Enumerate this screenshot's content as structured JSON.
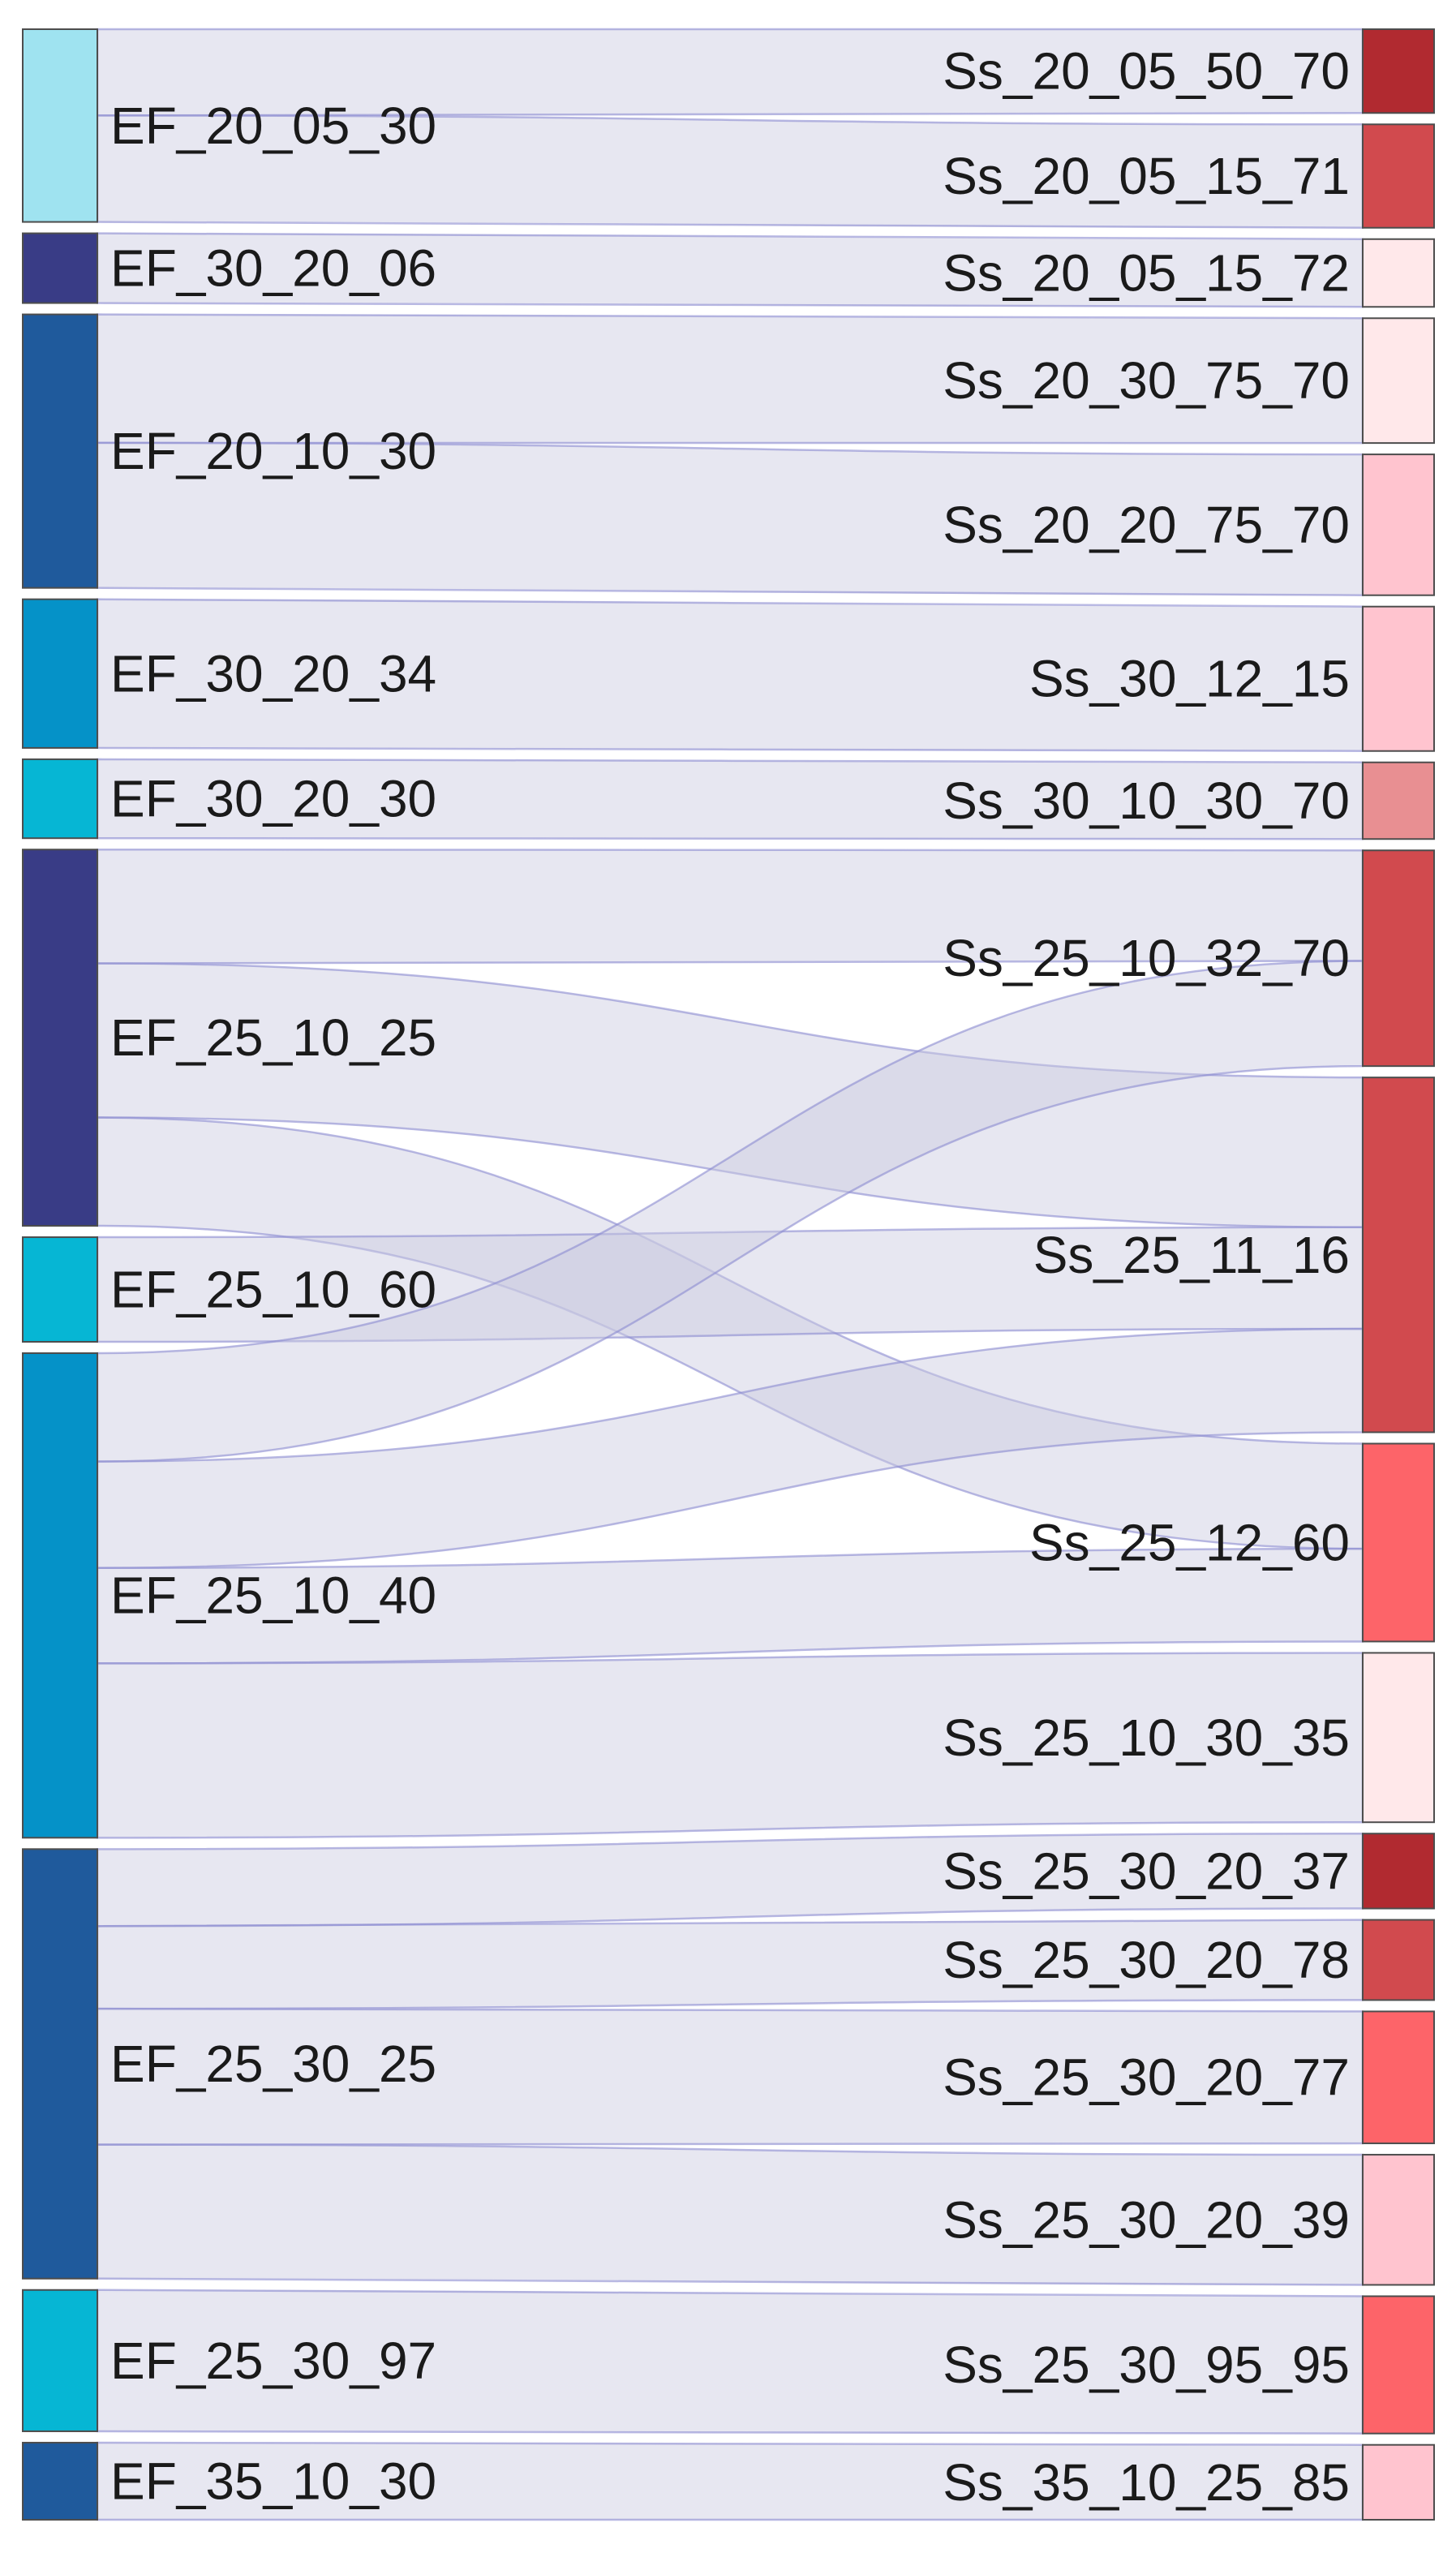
{
  "diagram": {
    "type": "sankey",
    "sources": [
      {
        "id": "EF_20_05_30",
        "label": "EF_20_05_30",
        "color": "#9fe3f0"
      },
      {
        "id": "EF_30_20_06",
        "label": "EF_30_20_06",
        "color": "#393c86"
      },
      {
        "id": "EF_20_10_30",
        "label": "EF_20_10_30",
        "color": "#1f5a9c"
      },
      {
        "id": "EF_30_20_34",
        "label": "EF_30_20_34",
        "color": "#0592c8"
      },
      {
        "id": "EF_30_20_30",
        "label": "EF_30_20_30",
        "color": "#06b6d4"
      },
      {
        "id": "EF_25_10_25",
        "label": "EF_25_10_25",
        "color": "#393c86"
      },
      {
        "id": "EF_25_10_60",
        "label": "EF_25_10_60",
        "color": "#06b6d4"
      },
      {
        "id": "EF_25_10_40",
        "label": "EF_25_10_40",
        "color": "#0592c8"
      },
      {
        "id": "EF_25_30_25",
        "label": "EF_25_30_25",
        "color": "#1f5a9c"
      },
      {
        "id": "EF_25_30_97",
        "label": "EF_25_30_97",
        "color": "#06b6d4"
      },
      {
        "id": "EF_35_10_30",
        "label": "EF_35_10_30",
        "color": "#1f5a9c"
      }
    ],
    "targets": [
      {
        "id": "Ss_20_05_50_70",
        "label": "Ss_20_05_50_70",
        "color": "#b12a30"
      },
      {
        "id": "Ss_20_05_15_71",
        "label": "Ss_20_05_15_71",
        "color": "#d14a4e"
      },
      {
        "id": "Ss_20_05_15_72",
        "label": "Ss_20_05_15_72",
        "color": "#ffe8ea"
      },
      {
        "id": "Ss_20_30_75_70",
        "label": "Ss_20_30_75_70",
        "color": "#ffe8ea"
      },
      {
        "id": "Ss_20_20_75_70",
        "label": "Ss_20_20_75_70",
        "color": "#ffc4cf"
      },
      {
        "id": "Ss_30_12_15",
        "label": "Ss_30_12_15",
        "color": "#ffc4cf"
      },
      {
        "id": "Ss_30_10_30_70",
        "label": "Ss_30_10_30_70",
        "color": "#e88f92"
      },
      {
        "id": "Ss_25_10_32_70",
        "label": "Ss_25_10_32_70",
        "color": "#d14a4e"
      },
      {
        "id": "Ss_25_11_16",
        "label": "Ss_25_11_16",
        "color": "#d14a4e"
      },
      {
        "id": "Ss_25_12_60",
        "label": "Ss_25_12_60",
        "color": "#fd6469"
      },
      {
        "id": "Ss_25_10_30_35",
        "label": "Ss_25_10_30_35",
        "color": "#ffe8ea"
      },
      {
        "id": "Ss_25_30_20_37",
        "label": "Ss_25_30_20_37",
        "color": "#b12a30"
      },
      {
        "id": "Ss_25_30_20_78",
        "label": "Ss_25_30_20_78",
        "color": "#d14a4e"
      },
      {
        "id": "Ss_25_30_20_77",
        "label": "Ss_25_30_20_77",
        "color": "#fd6469"
      },
      {
        "id": "Ss_25_30_20_39",
        "label": "Ss_25_30_20_39",
        "color": "#ffc4cf"
      },
      {
        "id": "Ss_25_30_95_95",
        "label": "Ss_25_30_95_95",
        "color": "#fd6469"
      },
      {
        "id": "Ss_35_10_25_85",
        "label": "Ss_35_10_25_85",
        "color": "#ffc4cf"
      }
    ],
    "flows": [
      {
        "source": "EF_20_05_30",
        "target": "Ss_20_05_50_70",
        "value": 47
      },
      {
        "source": "EF_20_05_30",
        "target": "Ss_20_05_15_71",
        "value": 58
      },
      {
        "source": "EF_30_20_06",
        "target": "Ss_20_05_15_72",
        "value": 38
      },
      {
        "source": "EF_20_10_30",
        "target": "Ss_20_30_75_70",
        "value": 70
      },
      {
        "source": "EF_20_10_30",
        "target": "Ss_20_20_75_70",
        "value": 79
      },
      {
        "source": "EF_30_20_34",
        "target": "Ss_30_12_15",
        "value": 81
      },
      {
        "source": "EF_30_20_30",
        "target": "Ss_30_10_30_70",
        "value": 43
      },
      {
        "source": "EF_25_10_25",
        "target": "Ss_25_11_16",
        "value": 84
      },
      {
        "source": "EF_25_10_25",
        "target": "Ss_25_12_60",
        "value": 59
      },
      {
        "source": "EF_25_10_25",
        "target": "Ss_25_10_32_70",
        "value": 62
      },
      {
        "source": "EF_25_10_60",
        "target": "Ss_25_11_16",
        "value": 57
      },
      {
        "source": "EF_25_10_40",
        "target": "Ss_25_11_16",
        "value": 58
      },
      {
        "source": "EF_25_10_40",
        "target": "Ss_25_10_32_70",
        "value": 59
      },
      {
        "source": "EF_25_10_40",
        "target": "Ss_25_12_60",
        "value": 52
      },
      {
        "source": "EF_25_10_40",
        "target": "Ss_25_10_30_35",
        "value": 95
      },
      {
        "source": "EF_25_30_25",
        "target": "Ss_25_30_20_37",
        "value": 42
      },
      {
        "source": "EF_25_30_25",
        "target": "Ss_25_30_20_78",
        "value": 45
      },
      {
        "source": "EF_25_30_25",
        "target": "Ss_25_30_20_77",
        "value": 74
      },
      {
        "source": "EF_25_30_25",
        "target": "Ss_25_30_20_39",
        "value": 73
      },
      {
        "source": "EF_25_30_97",
        "target": "Ss_25_30_95_95",
        "value": 77
      },
      {
        "source": "EF_35_10_30",
        "target": "Ss_35_10_25_85",
        "value": 42
      }
    ]
  }
}
